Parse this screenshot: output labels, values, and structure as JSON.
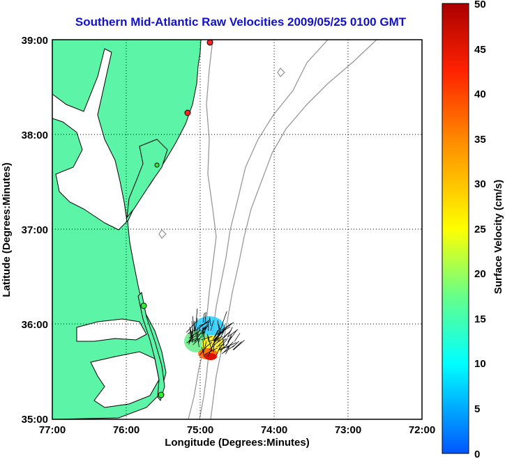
{
  "title": "Southern Mid-Atlantic Raw Velocities 2009/05/25 0100 GMT",
  "xlabel": "Longitude (Degrees:Minutes)",
  "ylabel": "Latitude (Degrees:Minutes)",
  "colorbar_label": "Surface Velocity (cm/s)",
  "x_ticks": [
    "77:00",
    "76:00",
    "75:00",
    "74:00",
    "73:00",
    "72:00"
  ],
  "y_ticks": [
    "39:00",
    "38:00",
    "37:00",
    "36:00",
    "35:00"
  ],
  "colorbar_ticks": [
    "50",
    "45",
    "40",
    "35",
    "30",
    "25",
    "20",
    "15",
    "10",
    "5",
    "0"
  ],
  "colors": {
    "land": "#5cf5a8",
    "coast": "#000000",
    "bathymetry": "#999999",
    "title": "#1111cc",
    "station_red": "#ff2020",
    "station_green": "#30ee30"
  },
  "chart_data": {
    "type": "map",
    "title": "Southern Mid-Atlantic Raw Velocities 2009/05/25 0100 GMT",
    "xlim": [
      -77,
      -72
    ],
    "ylim": [
      35,
      39
    ],
    "colorbar_range": [
      0,
      50
    ],
    "colorbar_units": "cm/s",
    "stations": [
      {
        "lon": -74.85,
        "lat": 38.98,
        "type": "red"
      },
      {
        "lon": -75.1,
        "lat": 38.22,
        "type": "red"
      },
      {
        "lon": -75.45,
        "lat": 37.68,
        "type": "green"
      },
      {
        "lon": -75.7,
        "lat": 36.2,
        "type": "green"
      },
      {
        "lon": -75.5,
        "lat": 35.25,
        "type": "green"
      }
    ]
  }
}
